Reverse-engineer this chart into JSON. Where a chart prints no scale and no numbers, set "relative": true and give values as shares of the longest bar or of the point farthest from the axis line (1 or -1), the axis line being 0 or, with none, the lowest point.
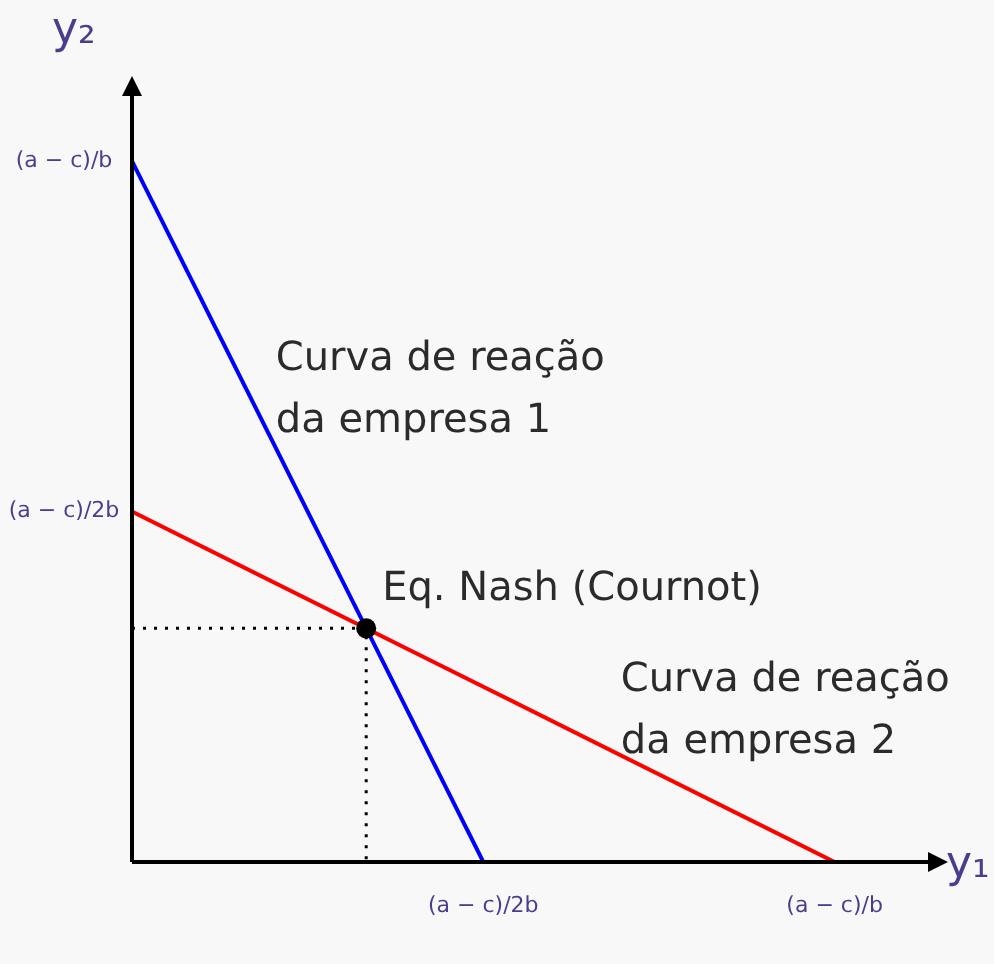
{
  "chart_data": {
    "type": "line",
    "relative": true,
    "xlabel": "y₁",
    "ylabel": "y₂",
    "legend": false,
    "marker": "none",
    "categories": [
      null,
      "(a − c)/2b",
      "(a − c)/b"
    ],
    "series": [
      {
        "name": "Curva de reação da empresa 1",
        "color": "#0000ff",
        "values": [
          1,
          0,
          null
        ]
      },
      {
        "name": "Curva de reação da empresa 2",
        "color": "#ff0000",
        "values": [
          0.5,
          0.25,
          0
        ]
      }
    ],
    "annotations": [
      "Eq. Nash (Cournot)",
      "(a − c)/b",
      "(a − c)/2b"
    ]
  }
}
